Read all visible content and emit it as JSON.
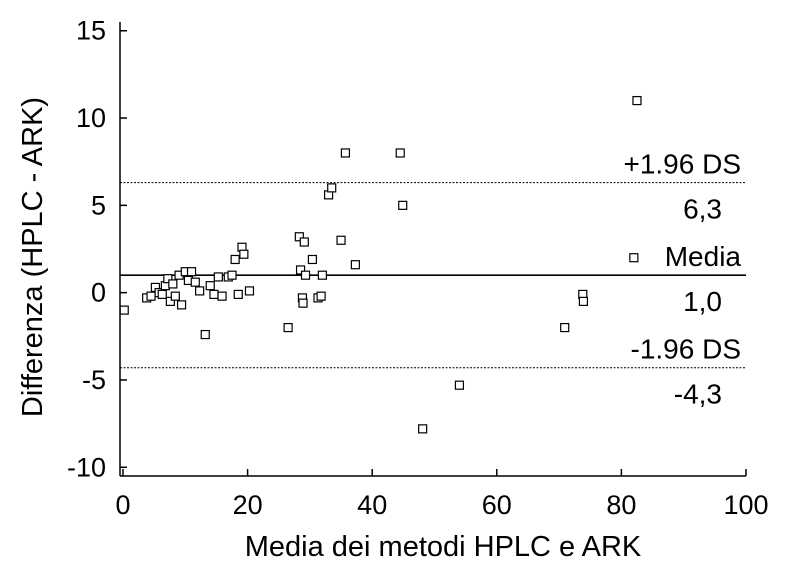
{
  "chart_data": {
    "type": "scatter",
    "title": "",
    "xlabel": "Media dei metodi HPLC e ARK",
    "ylabel": "Differenza (HPLC - ARK)",
    "xlim": [
      0,
      100
    ],
    "ylim": [
      -10.5,
      15.5
    ],
    "xticks": [
      0,
      20,
      40,
      60,
      80,
      100
    ],
    "yticks": [
      15,
      10,
      5,
      0,
      -5,
      -10
    ],
    "grid": false,
    "marker": "open-square",
    "points": [
      {
        "x": 0.2,
        "y": -1.0
      },
      {
        "x": 3.8,
        "y": -0.3
      },
      {
        "x": 4.5,
        "y": -0.2
      },
      {
        "x": 5.2,
        "y": 0.3
      },
      {
        "x": 5.8,
        "y": 0.0
      },
      {
        "x": 6.3,
        "y": -0.1
      },
      {
        "x": 6.8,
        "y": 0.4
      },
      {
        "x": 7.2,
        "y": 0.8
      },
      {
        "x": 7.6,
        "y": -0.5
      },
      {
        "x": 8.0,
        "y": 0.5
      },
      {
        "x": 8.4,
        "y": -0.2
      },
      {
        "x": 9.0,
        "y": 1.0
      },
      {
        "x": 9.4,
        "y": -0.7
      },
      {
        "x": 10.0,
        "y": 1.2
      },
      {
        "x": 10.5,
        "y": 0.7
      },
      {
        "x": 11.0,
        "y": 1.2
      },
      {
        "x": 11.6,
        "y": 0.6
      },
      {
        "x": 12.3,
        "y": 0.1
      },
      {
        "x": 13.2,
        "y": -2.4
      },
      {
        "x": 14.0,
        "y": 0.4
      },
      {
        "x": 14.6,
        "y": -0.1
      },
      {
        "x": 15.3,
        "y": 0.9
      },
      {
        "x": 15.9,
        "y": -0.2
      },
      {
        "x": 16.9,
        "y": 0.9
      },
      {
        "x": 17.5,
        "y": 1.0
      },
      {
        "x": 18.0,
        "y": 1.9
      },
      {
        "x": 18.5,
        "y": -0.1
      },
      {
        "x": 19.1,
        "y": 2.6
      },
      {
        "x": 19.4,
        "y": 2.2
      },
      {
        "x": 20.3,
        "y": 0.1
      },
      {
        "x": 26.5,
        "y": -2.0
      },
      {
        "x": 28.3,
        "y": 3.2
      },
      {
        "x": 28.5,
        "y": 1.3
      },
      {
        "x": 28.8,
        "y": -0.3
      },
      {
        "x": 28.9,
        "y": -0.6
      },
      {
        "x": 29.1,
        "y": 2.9
      },
      {
        "x": 29.3,
        "y": 1.0
      },
      {
        "x": 30.4,
        "y": 1.9
      },
      {
        "x": 31.3,
        "y": -0.3
      },
      {
        "x": 31.8,
        "y": -0.2
      },
      {
        "x": 32.0,
        "y": 1.0
      },
      {
        "x": 33.0,
        "y": 5.6
      },
      {
        "x": 33.5,
        "y": 6.0
      },
      {
        "x": 35.0,
        "y": 3.0
      },
      {
        "x": 35.7,
        "y": 8.0
      },
      {
        "x": 37.3,
        "y": 1.6
      },
      {
        "x": 44.5,
        "y": 8.0
      },
      {
        "x": 44.9,
        "y": 5.0
      },
      {
        "x": 48.1,
        "y": -7.8
      },
      {
        "x": 54.0,
        "y": -5.3
      },
      {
        "x": 70.9,
        "y": -2.0
      },
      {
        "x": 73.8,
        "y": -0.1
      },
      {
        "x": 73.9,
        "y": -0.5
      },
      {
        "x": 82.0,
        "y": 2.0
      },
      {
        "x": 82.5,
        "y": 11.0
      }
    ],
    "reference_lines": [
      {
        "id": "upper",
        "label": "+1.96 DS",
        "value": 6.3,
        "value_label": "6,3",
        "style": "dotted"
      },
      {
        "id": "mean",
        "label": "Media",
        "value": 1.0,
        "value_label": "1,0",
        "style": "solid"
      },
      {
        "id": "lower",
        "label": "-1.96 DS",
        "value": -4.3,
        "value_label": "-4,3",
        "style": "dotted"
      }
    ]
  }
}
